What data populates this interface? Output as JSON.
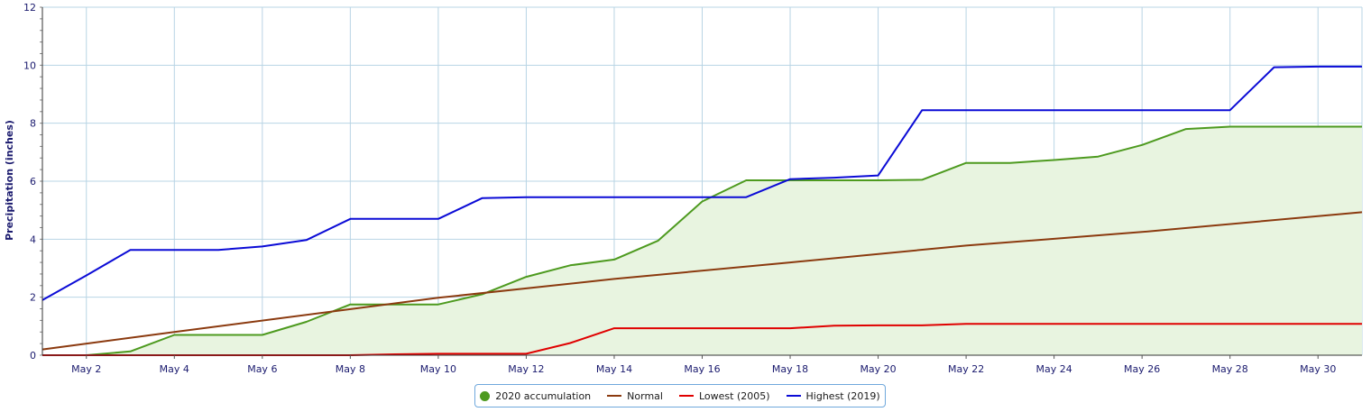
{
  "chart_data": {
    "type": "line",
    "ylabel": "Precipitation (inches)",
    "xlabel": "",
    "ylim": [
      0,
      12
    ],
    "yticks": [
      "0",
      "2",
      "4",
      "6",
      "8",
      "10",
      "12"
    ],
    "xlim_days": [
      1,
      31
    ],
    "xtick_days": [
      2,
      4,
      6,
      8,
      10,
      12,
      14,
      16,
      18,
      20,
      22,
      24,
      26,
      28,
      30
    ],
    "xtick_labels": [
      "May 2",
      "May 4",
      "May 6",
      "May 8",
      "May 10",
      "May 12",
      "May 14",
      "May 16",
      "May 18",
      "May 20",
      "May 22",
      "May 24",
      "May 26",
      "May 28",
      "May 30"
    ],
    "grid": true,
    "legend_position": "bottom-center",
    "series": [
      {
        "name": "2020 accumulation",
        "color": "#4d9a1f",
        "fill": "#e8f4e0",
        "marker": "circle",
        "area": true,
        "points": [
          [
            1,
            0
          ],
          [
            2,
            0
          ],
          [
            3,
            0.13
          ],
          [
            4,
            0.7
          ],
          [
            5,
            0.7
          ],
          [
            6,
            0.7
          ],
          [
            7,
            1.15
          ],
          [
            8,
            1.75
          ],
          [
            9,
            1.75
          ],
          [
            10,
            1.75
          ],
          [
            11,
            2.1
          ],
          [
            12,
            2.7
          ],
          [
            13,
            3.1
          ],
          [
            14,
            3.3
          ],
          [
            15,
            3.95
          ],
          [
            16,
            5.3
          ],
          [
            17,
            6.03
          ],
          [
            18,
            6.03
          ],
          [
            19,
            6.03
          ],
          [
            20,
            6.03
          ],
          [
            21,
            6.05
          ],
          [
            22,
            6.63
          ],
          [
            23,
            6.63
          ],
          [
            24,
            6.73
          ],
          [
            25,
            6.85
          ],
          [
            26,
            7.25
          ],
          [
            27,
            7.8
          ],
          [
            28,
            7.88
          ],
          [
            29,
            7.88
          ],
          [
            30,
            7.88
          ],
          [
            31,
            7.88
          ]
        ]
      },
      {
        "name": "Normal",
        "color": "#8b3a0f",
        "points": [
          [
            1,
            0.2
          ],
          [
            4,
            0.8
          ],
          [
            10,
            1.98
          ],
          [
            14,
            2.63
          ],
          [
            18,
            3.2
          ],
          [
            22,
            3.78
          ],
          [
            26,
            4.25
          ],
          [
            31,
            4.93
          ]
        ]
      },
      {
        "name": "Lowest (2005)",
        "color": "#e00000",
        "points": [
          [
            1,
            0
          ],
          [
            8,
            0
          ],
          [
            9,
            0.03
          ],
          [
            10,
            0.05
          ],
          [
            11,
            0.05
          ],
          [
            12,
            0.05
          ],
          [
            13,
            0.42
          ],
          [
            14,
            0.93
          ],
          [
            15,
            0.93
          ],
          [
            16,
            0.93
          ],
          [
            17,
            0.93
          ],
          [
            18,
            0.93
          ],
          [
            19,
            1.02
          ],
          [
            20,
            1.03
          ],
          [
            21,
            1.03
          ],
          [
            22,
            1.08
          ],
          [
            23,
            1.08
          ],
          [
            24,
            1.08
          ],
          [
            25,
            1.08
          ],
          [
            26,
            1.08
          ],
          [
            27,
            1.08
          ],
          [
            28,
            1.08
          ],
          [
            29,
            1.08
          ],
          [
            30,
            1.08
          ],
          [
            31,
            1.08
          ]
        ]
      },
      {
        "name": "Highest (2019)",
        "color": "#0b0bd6",
        "points": [
          [
            1,
            1.9
          ],
          [
            2,
            2.75
          ],
          [
            3,
            3.63
          ],
          [
            4,
            3.63
          ],
          [
            5,
            3.63
          ],
          [
            6,
            3.75
          ],
          [
            7,
            3.97
          ],
          [
            8,
            4.7
          ],
          [
            9,
            4.7
          ],
          [
            10,
            4.7
          ],
          [
            11,
            5.42
          ],
          [
            12,
            5.45
          ],
          [
            13,
            5.45
          ],
          [
            14,
            5.45
          ],
          [
            15,
            5.45
          ],
          [
            16,
            5.45
          ],
          [
            17,
            5.45
          ],
          [
            18,
            6.07
          ],
          [
            19,
            6.12
          ],
          [
            20,
            6.2
          ],
          [
            21,
            8.45
          ],
          [
            22,
            8.45
          ],
          [
            23,
            8.45
          ],
          [
            24,
            8.45
          ],
          [
            25,
            8.45
          ],
          [
            26,
            8.45
          ],
          [
            27,
            8.45
          ],
          [
            28,
            8.45
          ],
          [
            29,
            9.93
          ],
          [
            30,
            9.95
          ],
          [
            31,
            9.95
          ]
        ]
      }
    ]
  }
}
